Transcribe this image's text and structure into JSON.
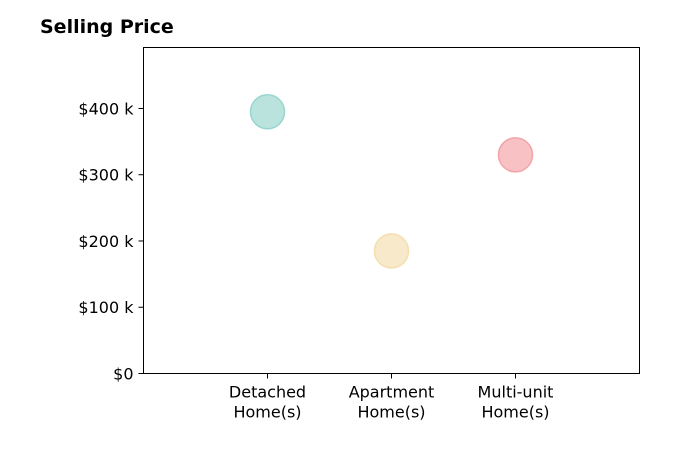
{
  "chart_data": {
    "type": "scatter",
    "title": "Selling Price",
    "categories": [
      "Detached\nHome(s)",
      "Apartment\nHome(s)",
      "Multi-unit\nHome(s)"
    ],
    "values": [
      395000,
      185000,
      330000
    ],
    "point_colors": [
      "#99d5cf",
      "#f3dfb0",
      "#f4a3a8"
    ],
    "xlim": [
      -1,
      3
    ],
    "ylim": [
      0,
      492000
    ],
    "yticks": [
      0,
      100000,
      200000,
      300000,
      400000
    ],
    "ytick_labels": [
      "$0",
      "$100 k",
      "$200 k",
      "$300 k",
      "$400 k"
    ],
    "xlabel": "",
    "ylabel": "",
    "grid": false,
    "legend": "none"
  }
}
